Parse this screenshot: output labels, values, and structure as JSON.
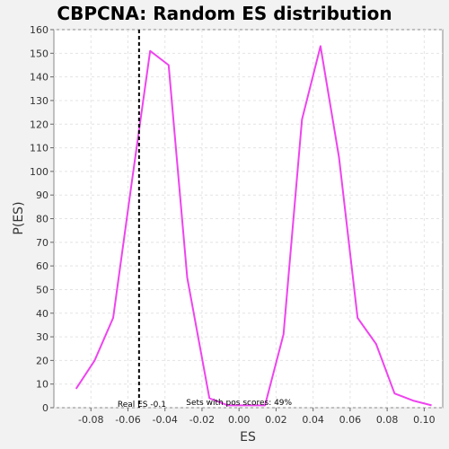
{
  "chart_data": {
    "type": "line",
    "title": "CBPCNA: Random ES distribution",
    "xlabel": "ES",
    "ylabel": "P(ES)",
    "xlim": [
      -0.1,
      0.11
    ],
    "ylim": [
      0,
      160
    ],
    "xticks": [
      -0.08,
      -0.06,
      -0.04,
      -0.02,
      0.0,
      0.02,
      0.04,
      0.06,
      0.08,
      0.1
    ],
    "xtick_labels": [
      "-0.08",
      "-0.06",
      "-0.04",
      "-0.02",
      "0.00",
      "0.02",
      "0.04",
      "0.06",
      "0.08",
      "0.10"
    ],
    "yticks": [
      0,
      10,
      20,
      30,
      40,
      50,
      60,
      70,
      80,
      90,
      100,
      110,
      120,
      130,
      140,
      150,
      160
    ],
    "grid": true,
    "series": [
      {
        "color": "#ee44ee",
        "x": [
          -0.088,
          -0.078,
          -0.068,
          -0.058,
          -0.048,
          -0.038,
          -0.028,
          -0.016,
          -0.006,
          0.004,
          0.014,
          0.024,
          0.034,
          0.044,
          0.054,
          0.064,
          0.074,
          0.084,
          0.094,
          0.104
        ],
        "y": [
          8,
          20,
          38,
          95,
          151,
          145,
          55,
          4,
          1,
          1,
          1,
          31,
          122,
          153,
          106,
          38,
          27,
          6,
          3,
          1
        ]
      }
    ],
    "real_es": {
      "x": -0.054,
      "style": "dashed",
      "color": "#000000"
    },
    "annotations": {
      "real_es_label": "Real ES -0.1",
      "pos_scores_label": "Sets with pos scores: 49%"
    }
  }
}
